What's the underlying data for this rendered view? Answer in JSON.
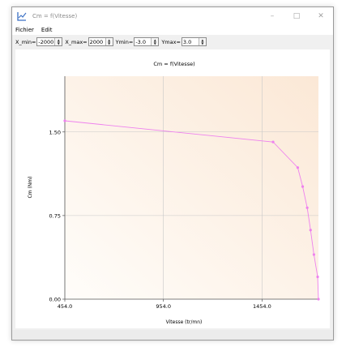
{
  "window": {
    "title": "Cm = f(Vitesse)",
    "controls": {
      "minimize": "–",
      "maximize": "□",
      "close": "✕"
    }
  },
  "menu": {
    "items": [
      "Fichier",
      "Edit"
    ]
  },
  "toolbar": {
    "xmin_label": "X_min=",
    "xmin_value": "-2000",
    "xmax_label": "X_max=",
    "xmax_value": "2000",
    "ymin_label": "Ymin=",
    "ymin_value": "-3.0",
    "ymax_label": "Ymax=",
    "ymax_value": "3.0"
  },
  "colors": {
    "series": "#ee82ee",
    "plot_bg_top": "#fbe8d6",
    "plot_bg_bottom": "#fffdfa",
    "grid": "#c8c8c8"
  },
  "chart_data": {
    "type": "line",
    "title": "Cm = f(Vitesse)",
    "xlabel": "Vitesse (tr/mn)",
    "ylabel": "Cm (Nm)",
    "xlim": [
      454,
      1740
    ],
    "ylim": [
      0,
      2.0
    ],
    "x_ticks": [
      "454.0",
      "954.0",
      "1454.0"
    ],
    "x_tick_values": [
      454,
      954,
      1454
    ],
    "y_ticks": [
      "1.50",
      "0.75",
      "0.00"
    ],
    "y_tick_values": [
      1.5,
      0.75,
      0.0
    ],
    "grid": true,
    "series": [
      {
        "x": [
          454,
          1510,
          1635,
          1660,
          1683,
          1700,
          1717,
          1736,
          1740
        ],
        "y": [
          1.6,
          1.41,
          1.18,
          1.01,
          0.82,
          0.62,
          0.4,
          0.2,
          0.0
        ]
      }
    ]
  }
}
